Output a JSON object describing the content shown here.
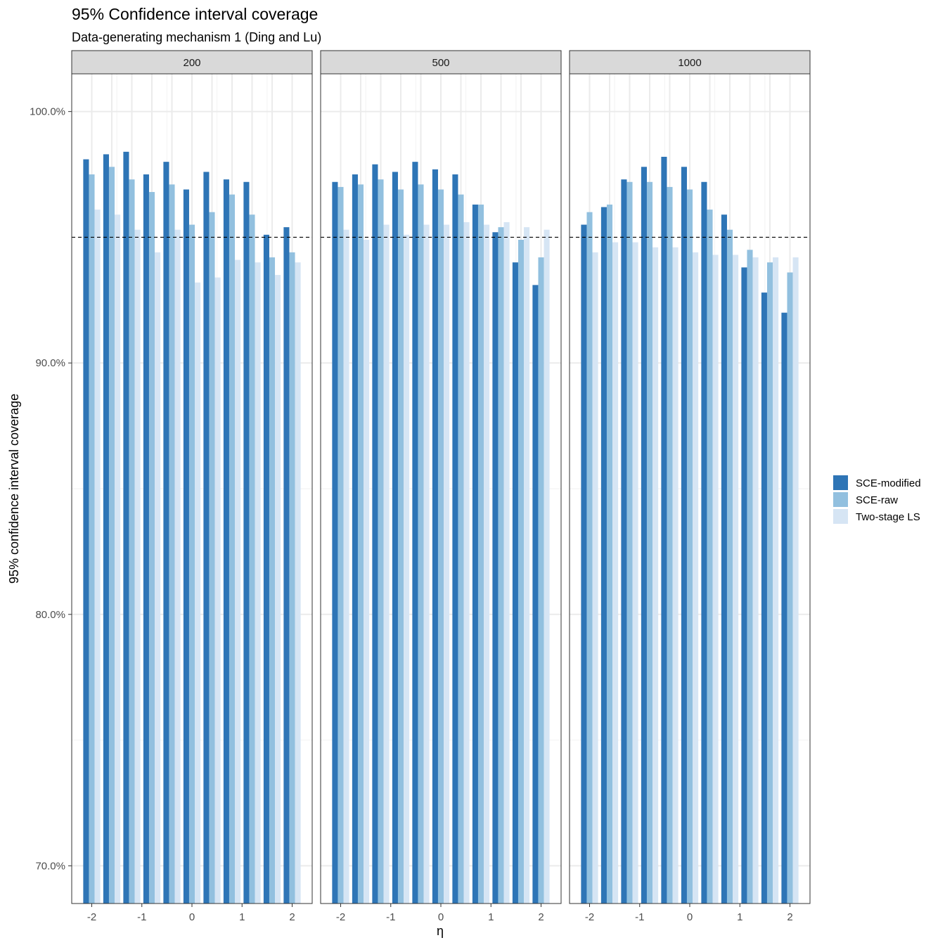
{
  "chart_data": {
    "type": "bar",
    "title": "95% Confidence interval coverage",
    "subtitle": "Data-generating mechanism 1 (Ding and Lu)",
    "xlabel": "η",
    "ylabel": "95% confidence interval coverage",
    "ylim": [
      0.685,
      1.015
    ],
    "yticks": [
      0.7,
      0.8,
      0.9,
      1.0
    ],
    "ytick_labels": [
      "70.0%",
      "80.0%",
      "90.0%",
      "100.0%"
    ],
    "xlim": [
      -2.4,
      2.4
    ],
    "xticks": [
      -2,
      -1,
      0,
      1,
      2
    ],
    "xtick_labels": [
      "-2",
      "-1",
      "0",
      "1",
      "2"
    ],
    "reference_line": 0.95,
    "grid": true,
    "legend_position": "right",
    "x": [
      -2,
      -1.6,
      -1.2,
      -0.8,
      -0.4,
      0,
      0.4,
      0.8,
      1.2,
      1.6,
      2
    ],
    "series_names": [
      "SCE-modified",
      "SCE-raw",
      "Two-stage LS"
    ],
    "series_colors": [
      "#2E75B6",
      "#92C0DF",
      "#D6E5F4"
    ],
    "panels": [
      {
        "label": "200",
        "series": [
          {
            "name": "SCE-modified",
            "values": [
              0.981,
              0.983,
              0.984,
              0.975,
              0.98,
              0.969,
              0.976,
              0.973,
              0.972,
              0.951,
              0.954
            ]
          },
          {
            "name": "SCE-raw",
            "values": [
              0.975,
              0.978,
              0.973,
              0.968,
              0.971,
              0.955,
              0.96,
              0.967,
              0.959,
              0.942,
              0.944
            ]
          },
          {
            "name": "Two-stage LS",
            "values": [
              0.961,
              0.959,
              0.953,
              0.944,
              0.953,
              0.932,
              0.934,
              0.941,
              0.94,
              0.935,
              0.94
            ]
          }
        ]
      },
      {
        "label": "500",
        "series": [
          {
            "name": "SCE-modified",
            "values": [
              0.972,
              0.975,
              0.979,
              0.976,
              0.98,
              0.977,
              0.975,
              0.963,
              0.952,
              0.94,
              0.931
            ]
          },
          {
            "name": "SCE-raw",
            "values": [
              0.97,
              0.971,
              0.973,
              0.969,
              0.971,
              0.969,
              0.967,
              0.963,
              0.954,
              0.949,
              0.942
            ]
          },
          {
            "name": "Two-stage LS",
            "values": [
              0.953,
              0.949,
              0.955,
              0.951,
              0.955,
              0.955,
              0.956,
              0.955,
              0.956,
              0.954,
              0.953
            ]
          }
        ]
      },
      {
        "label": "1000",
        "series": [
          {
            "name": "SCE-modified",
            "values": [
              0.955,
              0.962,
              0.973,
              0.978,
              0.982,
              0.978,
              0.972,
              0.959,
              0.938,
              0.928,
              0.92
            ]
          },
          {
            "name": "SCE-raw",
            "values": [
              0.96,
              0.963,
              0.972,
              0.972,
              0.97,
              0.969,
              0.961,
              0.953,
              0.945,
              0.94,
              0.936
            ]
          },
          {
            "name": "Two-stage LS",
            "values": [
              0.944,
              0.948,
              0.948,
              0.946,
              0.946,
              0.944,
              0.943,
              0.943,
              0.942,
              0.942,
              0.942
            ]
          }
        ]
      }
    ]
  }
}
